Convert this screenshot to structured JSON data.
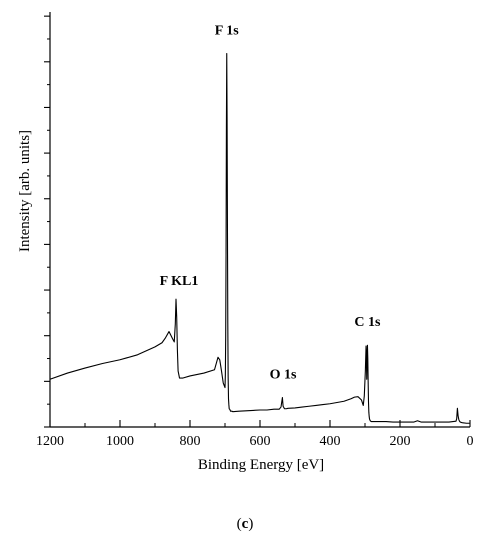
{
  "chart_data": {
    "type": "line",
    "title": "",
    "xlabel": "Binding Energy [eV]",
    "ylabel": "Intensity [arb. units]",
    "xlim": [
      1200,
      0
    ],
    "ylim": [
      0,
      100
    ],
    "x_reversed": true,
    "grid": false,
    "x_ticks": [
      1200,
      1000,
      800,
      600,
      400,
      200,
      0
    ],
    "x_tick_labels": [
      "1200",
      "1000",
      "800",
      "600",
      "400",
      "200",
      "0"
    ],
    "y_tick_labels_shown": false,
    "series": [
      {
        "x": [
          1200,
          1150,
          1100,
          1050,
          1000,
          950,
          900,
          880,
          870,
          860,
          850,
          845,
          842,
          840,
          838,
          836,
          834,
          830,
          825,
          820,
          800,
          760,
          730,
          725,
          720,
          715,
          710,
          705,
          700,
          699,
          698,
          697,
          696,
          695,
          694,
          693,
          692,
          691,
          690,
          689,
          688,
          686,
          684,
          680,
          678,
          660,
          640,
          620,
          600,
          580,
          560,
          545,
          540,
          536,
          534,
          530,
          525,
          520,
          500,
          480,
          460,
          440,
          420,
          400,
          380,
          360,
          340,
          330,
          320,
          310,
          305,
          302,
          299,
          297,
          296,
          295,
          294,
          293,
          292,
          291,
          290,
          289,
          288,
          287,
          286,
          285,
          282,
          280,
          260,
          240,
          220,
          200,
          180,
          160,
          150,
          140,
          120,
          100,
          80,
          60,
          40,
          38,
          36,
          34,
          32,
          30,
          28,
          25,
          20,
          10,
          0
        ],
        "y": [
          11.5,
          13,
          14.2,
          15.3,
          16.2,
          17.4,
          19.3,
          20.3,
          21.5,
          23,
          21.3,
          20.5,
          24.8,
          30.8,
          26.5,
          18.5,
          13.5,
          11.8,
          11.8,
          11.8,
          12.3,
          13,
          13.8,
          15.3,
          16.8,
          16.2,
          13.5,
          10.6,
          9.5,
          12.5,
          22,
          42,
          72,
          90,
          74,
          48,
          25,
          12,
          6.8,
          5.4,
          4.4,
          4.2,
          3.8,
          3.8,
          3.7,
          3.8,
          3.9,
          4,
          4.1,
          4.1,
          4.3,
          4.3,
          4.8,
          7.1,
          5,
          4.4,
          4.4,
          4.5,
          4.6,
          4.8,
          5,
          5.2,
          5.4,
          5.6,
          5.9,
          6.2,
          6.8,
          7.2,
          7.3,
          6.5,
          5.2,
          7.5,
          13.5,
          19.5,
          16.5,
          11.5,
          17.5,
          19.7,
          16.5,
          11,
          6,
          3.5,
          2.5,
          1.9,
          1.7,
          1.5,
          1.3,
          1.3,
          1.3,
          1.3,
          1.2,
          1.2,
          1.2,
          1.2,
          1.5,
          1.2,
          1.2,
          1.2,
          1.2,
          1.2,
          1.4,
          2,
          4.5,
          2.7,
          1.8,
          1.4,
          1.2,
          1.1,
          1.0,
          0.9,
          0.9
        ]
      }
    ],
    "annotations": [
      {
        "label": "F 1s",
        "x": 695,
        "y": 90
      },
      {
        "label": "F KL1",
        "x": 840,
        "y": 30.8
      },
      {
        "label": "O 1s",
        "x": 534,
        "y": 7.1
      },
      {
        "label": "C 1s",
        "x": 293,
        "y": 19.7
      }
    ],
    "panel_label": [
      "(",
      "c",
      ")"
    ]
  }
}
